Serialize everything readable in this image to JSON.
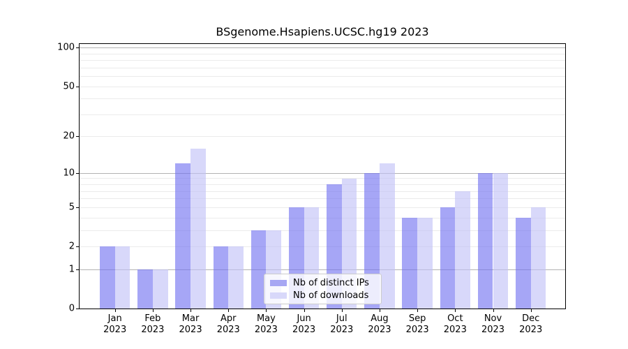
{
  "chart_data": {
    "type": "bar",
    "title": "BSgenome.Hsapiens.UCSC.hg19 2023",
    "months": [
      "Jan",
      "Feb",
      "Mar",
      "Apr",
      "May",
      "Jun",
      "Jul",
      "Aug",
      "Sep",
      "Oct",
      "Nov",
      "Dec"
    ],
    "year": "2023",
    "series": [
      {
        "name": "Nb of distinct IPs",
        "color": "#a7a7f3",
        "color_rgba": "rgba(111,111,240,0.62)",
        "values": [
          2,
          1,
          12,
          2,
          3,
          5,
          8,
          10,
          4,
          5,
          10,
          4
        ]
      },
      {
        "name": "Nb of downloads",
        "color": "#d8d8fa",
        "color_rgba": "rgba(192,192,247,0.62)",
        "values": [
          2,
          1,
          16,
          2,
          3,
          5,
          9,
          12,
          4,
          7,
          10,
          5
        ]
      }
    ],
    "yscale": "log1p",
    "ylim": [
      0,
      105
    ],
    "y_tick_labels": [
      "100",
      "50",
      "20",
      "10",
      "5",
      "2",
      "1",
      "0"
    ],
    "y_tick_values": [
      100,
      50,
      20,
      10,
      5,
      2,
      1,
      0
    ],
    "grid": {
      "decade_lines": [
        1,
        10,
        100
      ],
      "minor_lines": [
        2,
        3,
        4,
        5,
        6,
        7,
        8,
        9,
        20,
        30,
        40,
        50,
        60,
        70,
        80,
        90
      ],
      "on": true
    },
    "legend": {
      "position": "lower center"
    }
  },
  "colors": {
    "bar_distinct_ips": "#a7a7f3",
    "bar_downloads": "#d8d8fa",
    "grid_decade": "#b3b3b3",
    "grid_minor": "#ebebeb",
    "axis": "#000000",
    "legend_border": "#cccccc"
  }
}
